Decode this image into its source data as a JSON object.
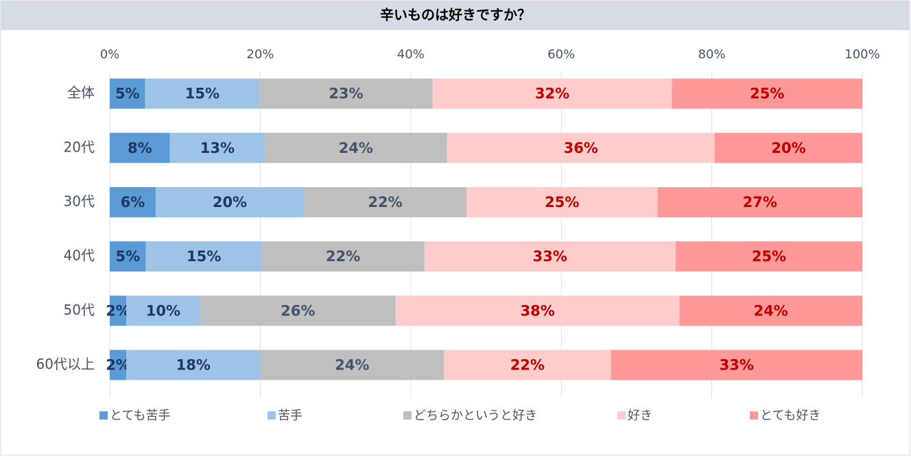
{
  "chart_data": {
    "type": "stacked-bar-horizontal",
    "title": "辛いものは好きですか？",
    "categories": [
      "全体",
      "20代",
      "30代",
      "40代",
      "50代",
      "60代以上"
    ],
    "xlim": [
      0,
      100
    ],
    "xticks": [
      {
        "value": 0,
        "label": "0%"
      },
      {
        "value": 20,
        "label": "20%"
      },
      {
        "value": 40,
        "label": "40%"
      },
      {
        "value": 60,
        "label": "60%"
      },
      {
        "value": 80,
        "label": "80%"
      },
      {
        "value": 100,
        "label": "100%"
      }
    ],
    "grid": true,
    "legend": "bottom",
    "series": [
      {
        "name": "とても苦手",
        "color": "#5b9bd5",
        "label_color": "#1f3864",
        "values": [
          4.7,
          8.0,
          6.1,
          4.8,
          2.2,
          2.2
        ],
        "value_labels": [
          "5%",
          "8%",
          "6%",
          "5%",
          "2%",
          "2%"
        ]
      },
      {
        "name": "苦手",
        "color": "#9dc3e6",
        "label_color": "#1f3864",
        "values": [
          15.2,
          12.6,
          19.7,
          15.4,
          9.8,
          17.8
        ],
        "value_labels": [
          "15%",
          "13%",
          "20%",
          "15%",
          "10%",
          "18%"
        ]
      },
      {
        "name": "どちらかというと好き",
        "color": "#bfbfbf",
        "label_color": "#44546a",
        "values": [
          23.0,
          24.2,
          21.6,
          21.6,
          26.0,
          24.4
        ],
        "value_labels": [
          "23%",
          "24%",
          "22%",
          "22%",
          "26%",
          "24%"
        ]
      },
      {
        "name": "好き",
        "color": "#ffcccc",
        "label_color": "#c00000",
        "values": [
          31.8,
          35.6,
          25.4,
          33.4,
          37.7,
          22.2
        ],
        "value_labels": [
          "32%",
          "36%",
          "25%",
          "33%",
          "38%",
          "22%"
        ]
      },
      {
        "name": "とても好き",
        "color": "#ff9999",
        "label_color": "#c00000",
        "values": [
          25.3,
          19.6,
          27.2,
          24.8,
          24.3,
          33.4
        ],
        "value_labels": [
          "25%",
          "20%",
          "27%",
          "25%",
          "24%",
          "33%"
        ]
      }
    ]
  }
}
